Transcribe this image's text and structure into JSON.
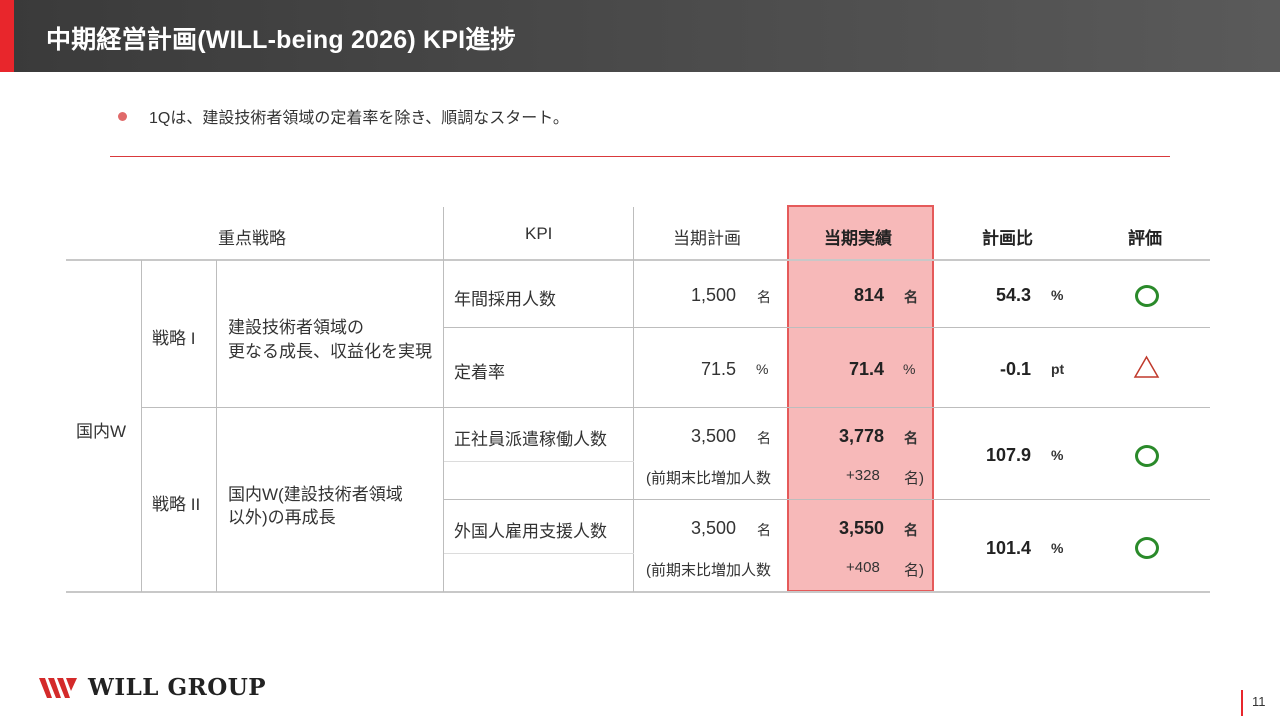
{
  "header": {
    "title": "中期経営計画(WILL-being 2026) KPI進捗"
  },
  "bullet": "1Qは、建設技術者領域の定着率を除き、順調なスタート。",
  "table": {
    "headers": {
      "strategy": "重点戦略",
      "kpi": "KPI",
      "plan": "当期計画",
      "actual": "当期実績",
      "ratio": "計画比",
      "eval": "評価"
    },
    "segment": "国内W",
    "strategy1": {
      "name": "戦略 I",
      "desc_line1": "建設技術者領域の",
      "desc_line2": "更なる成長、収益化を実現"
    },
    "strategy2": {
      "name": "戦略 II",
      "desc_line1": "国内W(建設技術者領域",
      "desc_line2": "以外)の再成長"
    },
    "rows": [
      {
        "kpi": "年間採用人数",
        "plan": "1,500",
        "plan_unit": "名",
        "actual": "814",
        "actual_unit": "名",
        "ratio": "54.3",
        "ratio_unit": "%",
        "eval": "circle"
      },
      {
        "kpi": "定着率",
        "plan": "71.5",
        "plan_unit": "%",
        "actual": "71.4",
        "actual_unit": "%",
        "ratio": "-0.1",
        "ratio_unit": "pt",
        "eval": "triangle"
      },
      {
        "kpi": "正社員派遣稼働人数",
        "plan": "3,500",
        "plan_unit": "名",
        "actual": "3,778",
        "actual_unit": "名",
        "ratio": "107.9",
        "ratio_unit": "%",
        "eval": "circle",
        "sub_label": "(前期末比増加人数",
        "sub_value": "+328",
        "sub_unit": "名)"
      },
      {
        "kpi": "外国人雇用支援人数",
        "plan": "3,500",
        "plan_unit": "名",
        "actual": "3,550",
        "actual_unit": "名",
        "ratio": "101.4",
        "ratio_unit": "%",
        "eval": "circle",
        "sub_label": "(前期末比増加人数",
        "sub_value": "+408",
        "sub_unit": "名)"
      }
    ]
  },
  "footer": {
    "brand": "WILL GROUP",
    "page": "11"
  },
  "colors": {
    "accent": "#e8262c",
    "actual_bg": "#f7b9b9",
    "actual_border": "#e55a5a",
    "eval_good": "#2a8a2a",
    "eval_warn": "#c0392b"
  }
}
